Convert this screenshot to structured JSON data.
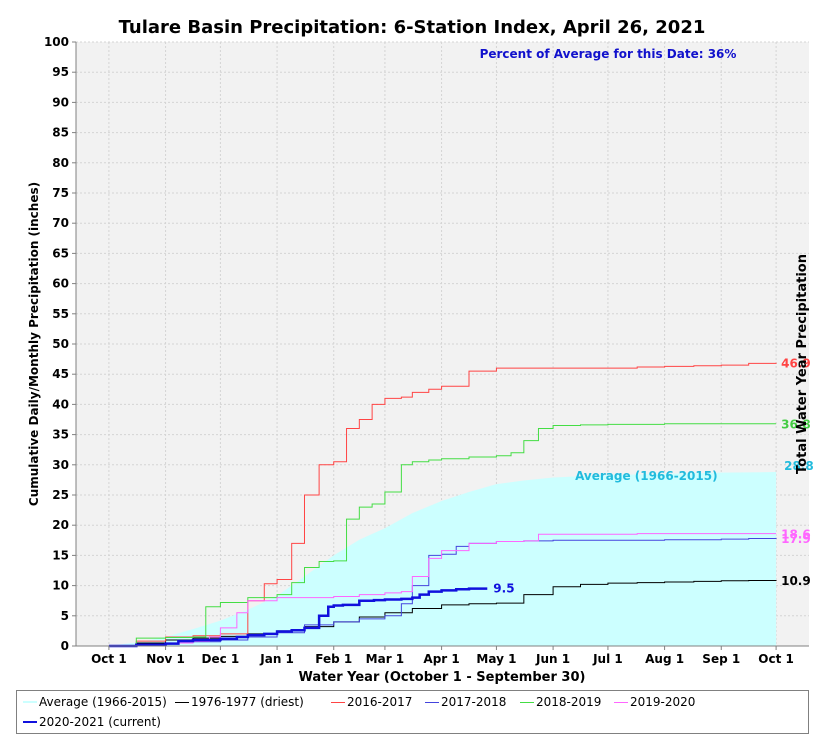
{
  "chart_data": {
    "type": "line",
    "title": "Tulare Basin Precipitation: 6-Station Index, April 26, 2021",
    "annotation": "Percent of Average for this Date: 36%",
    "xlabel": "Water Year (October 1 - September 30)",
    "ylabel": "Cumulative Daily/Monthly Precipitation (inches)",
    "ylabel_right": "Total Water Year Precipitation",
    "x_tick_labels": [
      "Oct 1",
      "Nov 1",
      "Dec 1",
      "Jan 1",
      "Feb 1",
      "Mar 1",
      "Apr 1",
      "May 1",
      "Jun 1",
      "Jul 1",
      "Aug 1",
      "Sep 1",
      "Oct 1"
    ],
    "x_tick_days": [
      0,
      31,
      61,
      92,
      123,
      151,
      182,
      212,
      243,
      273,
      304,
      335,
      365
    ],
    "xlim": [
      -18,
      383
    ],
    "ylim": [
      0,
      100
    ],
    "y_ticks": [
      0,
      5,
      10,
      15,
      20,
      25,
      30,
      35,
      40,
      45,
      50,
      55,
      60,
      65,
      70,
      75,
      80,
      85,
      90,
      95,
      100
    ],
    "grid": true,
    "legend_position": "bottom",
    "series": [
      {
        "name": "Average (1966-2015)",
        "key": "average",
        "color": "#ccffff",
        "type": "area",
        "total_label": "28.8",
        "total_color": "#22bbdd",
        "area_label": "Average (1966-2015)",
        "days": [
          0,
          15,
          31,
          46,
          61,
          76,
          92,
          107,
          123,
          137,
          151,
          166,
          182,
          197,
          212,
          227,
          243,
          258,
          273,
          289,
          304,
          320,
          335,
          350,
          365
        ],
        "values": [
          0,
          0.6,
          1.5,
          2.8,
          4.2,
          6,
          8.3,
          11.5,
          15,
          17.6,
          19.5,
          22,
          24,
          25.5,
          26.8,
          27.4,
          27.9,
          28.1,
          28.3,
          28.4,
          28.5,
          28.6,
          28.7,
          28.75,
          28.8
        ]
      },
      {
        "name": "1976-1977 (driest)",
        "key": "driest",
        "color": "#000000",
        "type": "line",
        "total_label": "10.9",
        "total_color": "#000000",
        "days": [
          0,
          15,
          31,
          46,
          61,
          76,
          92,
          107,
          123,
          137,
          151,
          166,
          182,
          197,
          212,
          227,
          243,
          258,
          273,
          289,
          304,
          320,
          335,
          350,
          365
        ],
        "values": [
          0,
          0.5,
          1,
          1.3,
          1.6,
          2,
          2.5,
          3.2,
          4,
          4.8,
          5.5,
          6.2,
          6.8,
          7,
          7.1,
          8.5,
          9.8,
          10.2,
          10.4,
          10.5,
          10.6,
          10.7,
          10.8,
          10.85,
          10.9
        ]
      },
      {
        "name": "2016-2017",
        "key": "wy2017",
        "color": "#ff4444",
        "type": "line",
        "total_label": "46.9",
        "total_color": "#ff4444",
        "days": [
          0,
          15,
          31,
          46,
          61,
          76,
          85,
          92,
          100,
          107,
          115,
          123,
          130,
          137,
          144,
          151,
          160,
          166,
          175,
          182,
          197,
          212,
          227,
          243,
          258,
          273,
          289,
          304,
          320,
          335,
          350,
          365
        ],
        "values": [
          0,
          0.8,
          1.5,
          1.7,
          2,
          7.5,
          10.3,
          11,
          17,
          25,
          30,
          30.5,
          36,
          37.5,
          40,
          41,
          41.2,
          42,
          42.5,
          43,
          45.5,
          46,
          46,
          46,
          46,
          46,
          46.2,
          46.3,
          46.4,
          46.5,
          46.8,
          46.9
        ]
      },
      {
        "name": "2017-2018",
        "key": "wy2018",
        "color": "#4444dd",
        "type": "line",
        "total_label": "17.9",
        "total_color": "#ff66ff",
        "days": [
          0,
          15,
          31,
          46,
          61,
          76,
          92,
          107,
          123,
          137,
          151,
          160,
          166,
          175,
          182,
          190,
          197,
          212,
          227,
          243,
          258,
          273,
          289,
          304,
          320,
          335,
          350,
          365
        ],
        "values": [
          0,
          0.2,
          0.5,
          0.7,
          1,
          1.5,
          2.2,
          3.5,
          4,
          4.5,
          5,
          7,
          10,
          15,
          15.2,
          16.5,
          17,
          17.3,
          17.4,
          17.5,
          17.5,
          17.5,
          17.5,
          17.6,
          17.6,
          17.7,
          17.8,
          17.9
        ]
      },
      {
        "name": "2018-2019",
        "key": "wy2019",
        "color": "#44dd44",
        "type": "line",
        "total_label": "36.8",
        "total_color": "#44cc44",
        "days": [
          0,
          15,
          31,
          46,
          53,
          61,
          76,
          92,
          100,
          107,
          115,
          123,
          130,
          137,
          144,
          151,
          160,
          166,
          175,
          182,
          197,
          212,
          220,
          227,
          235,
          243,
          258,
          273,
          289,
          304,
          320,
          335,
          350,
          365
        ],
        "values": [
          0,
          1.3,
          1.4,
          1.5,
          6.5,
          7.2,
          8,
          8.5,
          10.5,
          13,
          14,
          14.1,
          21,
          23,
          23.5,
          25.5,
          30,
          30.5,
          30.8,
          31,
          31.3,
          31.5,
          32,
          34,
          36,
          36.5,
          36.6,
          36.7,
          36.7,
          36.8,
          36.8,
          36.8,
          36.8,
          36.8
        ]
      },
      {
        "name": "2019-2020",
        "key": "wy2020",
        "color": "#ff66ff",
        "type": "line",
        "total_label": "18.6",
        "total_color": "#ff66ff",
        "days": [
          0,
          15,
          31,
          46,
          55,
          61,
          70,
          76,
          92,
          107,
          123,
          137,
          151,
          160,
          166,
          175,
          182,
          197,
          212,
          227,
          235,
          243,
          258,
          273,
          289,
          304,
          320,
          335,
          350,
          365
        ],
        "values": [
          0,
          0.2,
          0.5,
          0.8,
          1.5,
          3,
          5.5,
          7.5,
          8,
          8,
          8.2,
          8.5,
          8.8,
          9,
          11.5,
          14.5,
          15.8,
          17,
          17.3,
          17.4,
          18.5,
          18.5,
          18.5,
          18.5,
          18.6,
          18.6,
          18.6,
          18.6,
          18.6,
          18.6
        ]
      },
      {
        "name": "2020-2021 (current)",
        "key": "current",
        "color": "#1111dd",
        "type": "line",
        "bold": true,
        "total_label": "9.5",
        "total_color": "#1111dd",
        "days": [
          0,
          15,
          31,
          38,
          46,
          61,
          70,
          76,
          85,
          92,
          100,
          107,
          115,
          120,
          123,
          128,
          137,
          145,
          151,
          160,
          166,
          170,
          175,
          182,
          190,
          197,
          207
        ],
        "values": [
          0,
          0.2,
          0.4,
          0.8,
          1,
          1.2,
          1.5,
          1.8,
          2,
          2.4,
          2.6,
          3,
          5,
          6.5,
          6.7,
          6.8,
          7.5,
          7.6,
          7.7,
          7.8,
          8,
          8.5,
          9,
          9.2,
          9.4,
          9.5,
          9.5
        ]
      }
    ]
  }
}
